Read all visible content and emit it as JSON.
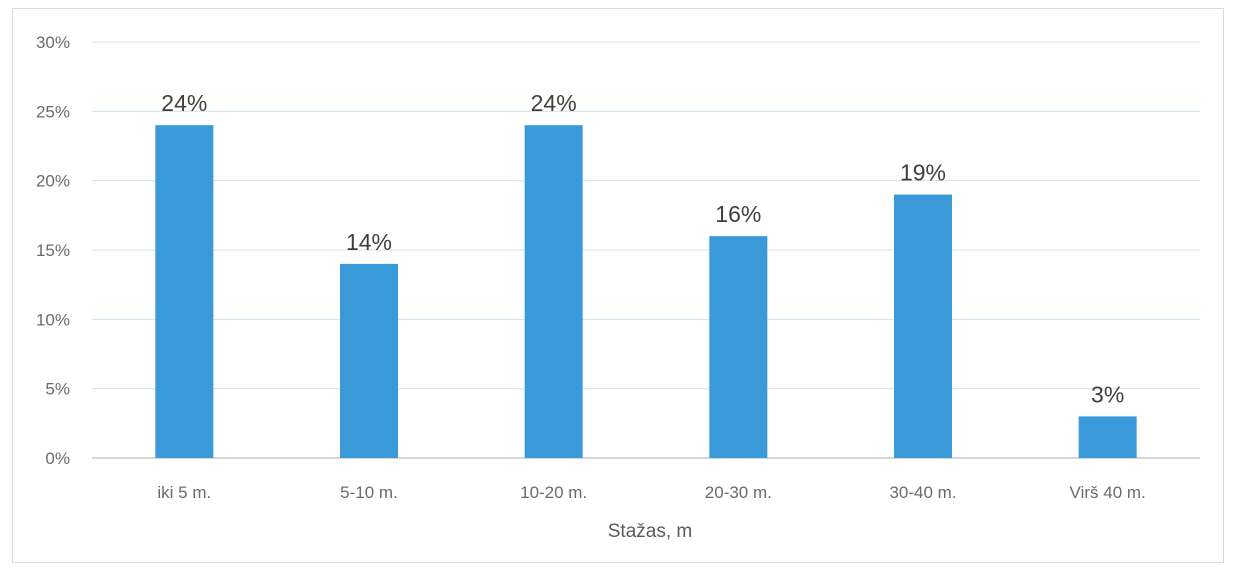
{
  "chart_data": {
    "type": "bar",
    "title": "",
    "xlabel": "Stažas, m",
    "ylabel": "",
    "categories": [
      "iki 5 m.",
      "5-10 m.",
      "10-20 m.",
      "20-30 m.",
      "30-40 m.",
      "Virš 40 m."
    ],
    "values": [
      24,
      14,
      24,
      16,
      19,
      3
    ],
    "data_labels": [
      "24%",
      "14%",
      "24%",
      "16%",
      "19%",
      "3%"
    ],
    "ylim": [
      0,
      30
    ],
    "yticks": [
      0,
      5,
      10,
      15,
      20,
      25,
      30
    ],
    "ytick_labels": [
      "0%",
      "5%",
      "10%",
      "15%",
      "20%",
      "25%",
      "30%"
    ],
    "grid": true,
    "legend": "none",
    "colors": {
      "bar": "#3a9ad9",
      "grid": "#d0e3f0",
      "axis": "#c8c8c8"
    }
  }
}
